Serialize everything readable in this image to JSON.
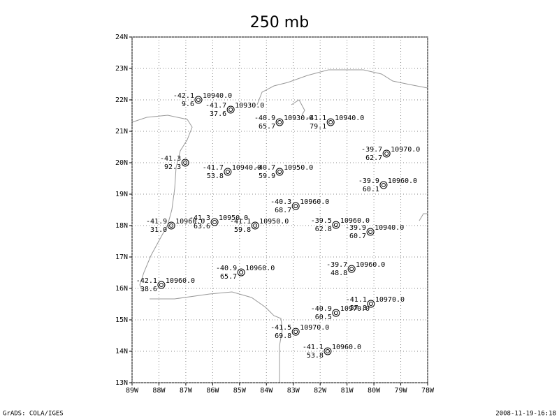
{
  "title": "250 mb",
  "map": {
    "xlim": [
      -89,
      -78
    ],
    "ylim": [
      13,
      24
    ],
    "grid": true,
    "xticks": [
      {
        "value": -89,
        "label": "89W"
      },
      {
        "value": -88,
        "label": "88W"
      },
      {
        "value": -87,
        "label": "87W"
      },
      {
        "value": -86,
        "label": "86W"
      },
      {
        "value": -85,
        "label": "85W"
      },
      {
        "value": -84,
        "label": "84W"
      },
      {
        "value": -83,
        "label": "83W"
      },
      {
        "value": -82,
        "label": "82W"
      },
      {
        "value": -81,
        "label": "81W"
      },
      {
        "value": -80,
        "label": "80W"
      },
      {
        "value": -79,
        "label": "79W"
      },
      {
        "value": -78,
        "label": "78W"
      }
    ],
    "yticks": [
      {
        "value": 13,
        "label": "13N"
      },
      {
        "value": 14,
        "label": "14N"
      },
      {
        "value": 15,
        "label": "15N"
      },
      {
        "value": 16,
        "label": "16N"
      },
      {
        "value": 17,
        "label": "17N"
      },
      {
        "value": 18,
        "label": "18N"
      },
      {
        "value": 19,
        "label": "19N"
      },
      {
        "value": 20,
        "label": "20N"
      },
      {
        "value": 21,
        "label": "21N"
      },
      {
        "value": 22,
        "label": "22N"
      },
      {
        "value": 23,
        "label": "23N"
      },
      {
        "value": 24,
        "label": "24N"
      }
    ],
    "stations": [
      {
        "lon": -86.53,
        "lat": 22.0,
        "temp": "-42.1",
        "dew": "9.6",
        "height": "10940.0"
      },
      {
        "lon": -85.33,
        "lat": 21.69,
        "temp": "-41.7",
        "dew": "37.6",
        "height": "10930.0"
      },
      {
        "lon": -83.51,
        "lat": 21.29,
        "temp": "-40.9",
        "dew": "65.7",
        "height": "10930.0"
      },
      {
        "lon": -81.61,
        "lat": 21.29,
        "temp": "-41.1",
        "dew": "79.1",
        "height": "10940.0"
      },
      {
        "lon": -87.02,
        "lat": 20.0,
        "temp": "-41.3",
        "dew": "92.3"
      },
      {
        "lon": -85.44,
        "lat": 19.71,
        "temp": "-41.7",
        "dew": "53.8",
        "height": "10940.0"
      },
      {
        "lon": -83.51,
        "lat": 19.71,
        "temp": "-40.7",
        "dew": "59.9",
        "height": "10950.0"
      },
      {
        "lon": -79.53,
        "lat": 20.29,
        "temp": "-39.7",
        "dew": "62.7",
        "height": "10970.0"
      },
      {
        "lon": -79.64,
        "lat": 19.29,
        "temp": "-39.9",
        "dew": "60.1",
        "height": "10960.0"
      },
      {
        "lon": -82.91,
        "lat": 18.62,
        "temp": "-40.3",
        "dew": "68.7",
        "height": "10960.0"
      },
      {
        "lon": -87.54,
        "lat": 18.0,
        "temp": "-41.9",
        "dew": "31.0",
        "height": "10960.0"
      },
      {
        "lon": -85.93,
        "lat": 18.11,
        "temp": "-41.3",
        "dew": "63.6",
        "height": "10950.0"
      },
      {
        "lon": -84.42,
        "lat": 18.0,
        "temp": "-41.1",
        "dew": "59.8",
        "height": "10950.0"
      },
      {
        "lon": -81.41,
        "lat": 18.02,
        "temp": "-39.5",
        "dew": "62.8",
        "height": "10960.0"
      },
      {
        "lon": -80.13,
        "lat": 17.8,
        "temp": "-39.9",
        "dew": "60.7",
        "height": "10940.0"
      },
      {
        "lon": -84.94,
        "lat": 16.51,
        "temp": "-40.9",
        "dew": "65.7",
        "height": "10960.0"
      },
      {
        "lon": -80.83,
        "lat": 16.62,
        "temp": "-39.7",
        "dew": "48.8",
        "height": "10960.0"
      },
      {
        "lon": -87.91,
        "lat": 16.11,
        "temp": "-42.1",
        "dew": "38.6",
        "height": "10960.0"
      },
      {
        "lon": -80.11,
        "lat": 15.51,
        "temp": "-41.1",
        "dew": "57.8",
        "height": "10970.0"
      },
      {
        "lon": -81.41,
        "lat": 15.22,
        "temp": "-40.9",
        "dew": "60.5",
        "height": "10970.0"
      },
      {
        "lon": -82.91,
        "lat": 14.62,
        "temp": "-41.5",
        "dew": "69.8",
        "height": "10970.0"
      },
      {
        "lon": -81.72,
        "lat": 14.0,
        "temp": "-41.1",
        "dew": "53.8",
        "height": "10960.0"
      }
    ]
  },
  "footer": {
    "left": "GrADS: COLA/IGES",
    "right": "2008-11-19-16:18"
  }
}
